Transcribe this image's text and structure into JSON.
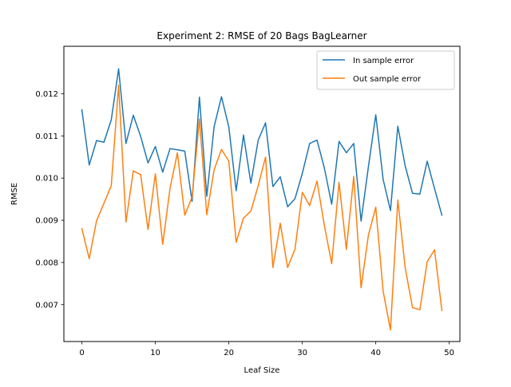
{
  "chart_data": {
    "type": "line",
    "title": "Experiment 2: RMSE of 20 Bags BagLearner",
    "xlabel": "Leaf Size",
    "ylabel": "RMSE",
    "xlim": [
      -2.45,
      51.45
    ],
    "ylim": [
      0.006125,
      0.013125
    ],
    "xticks": [
      0,
      10,
      20,
      30,
      40,
      50
    ],
    "xtick_labels": [
      "0",
      "10",
      "20",
      "30",
      "40",
      "50"
    ],
    "yticks": [
      0.007,
      0.008,
      0.009,
      0.01,
      0.011,
      0.012
    ],
    "ytick_labels": [
      "0.007",
      "0.008",
      "0.009",
      "0.010",
      "0.011",
      "0.012"
    ],
    "grid": false,
    "legend_position": "top-right",
    "x": [
      0,
      1,
      2,
      3,
      4,
      5,
      6,
      7,
      8,
      9,
      10,
      11,
      12,
      13,
      14,
      15,
      16,
      17,
      18,
      19,
      20,
      21,
      22,
      23,
      24,
      25,
      26,
      27,
      28,
      29,
      30,
      31,
      32,
      33,
      34,
      35,
      36,
      37,
      38,
      39,
      40,
      41,
      42,
      43,
      44,
      45,
      46,
      47,
      48,
      49
    ],
    "series": [
      {
        "name": "In sample error",
        "color": "#1f77b4",
        "values": [
          0.01162,
          0.01031,
          0.01089,
          0.01085,
          0.01138,
          0.01259,
          0.01082,
          0.01149,
          0.01099,
          0.01036,
          0.01075,
          0.01014,
          0.0107,
          0.01067,
          0.01064,
          0.00945,
          0.01192,
          0.00957,
          0.01122,
          0.01193,
          0.01121,
          0.0097,
          0.01102,
          0.00988,
          0.0109,
          0.01131,
          0.0098,
          0.01003,
          0.00932,
          0.00951,
          0.01011,
          0.01082,
          0.0109,
          0.01024,
          0.00938,
          0.01087,
          0.0106,
          0.01082,
          0.00898,
          0.01027,
          0.0115,
          0.00997,
          0.00923,
          0.01123,
          0.01029,
          0.00964,
          0.00962,
          0.0104,
          0.00975,
          0.00912
        ]
      },
      {
        "name": "Out sample error",
        "color": "#ff7f0e",
        "values": [
          0.0088,
          0.00809,
          0.00899,
          0.0094,
          0.00982,
          0.0122,
          0.00896,
          0.01017,
          0.01008,
          0.00878,
          0.0101,
          0.00843,
          0.00976,
          0.0106,
          0.00912,
          0.00955,
          0.0114,
          0.00913,
          0.0102,
          0.01068,
          0.0104,
          0.00848,
          0.00905,
          0.00922,
          0.00982,
          0.0105,
          0.00788,
          0.00893,
          0.00788,
          0.00831,
          0.00966,
          0.00935,
          0.00993,
          0.00888,
          0.00797,
          0.0099,
          0.00831,
          0.01004,
          0.0074,
          0.00865,
          0.00931,
          0.00732,
          0.0064,
          0.00948,
          0.00788,
          0.00693,
          0.00688,
          0.00802,
          0.0083,
          0.00686
        ]
      }
    ]
  }
}
